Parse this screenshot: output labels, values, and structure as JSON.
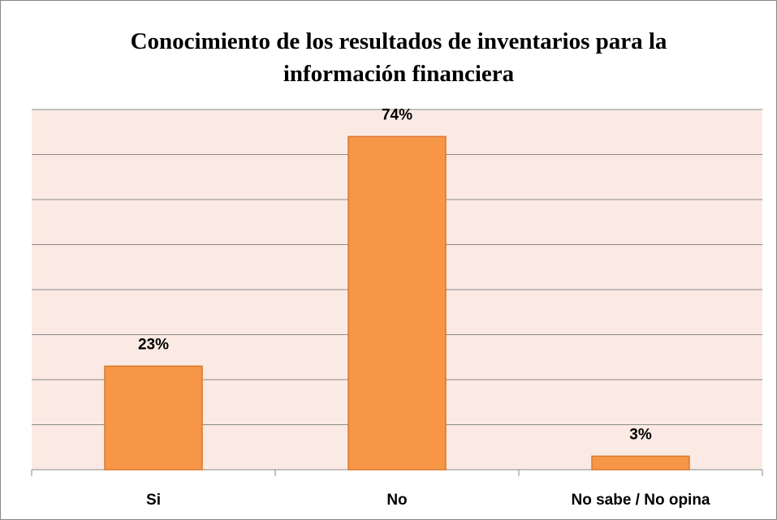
{
  "chart_data": {
    "type": "bar",
    "title": "Conocimiento de los resultados de inventarios para la información financiera",
    "categories": [
      "Si",
      "No",
      "No sabe / No opina"
    ],
    "values": [
      23,
      74,
      3
    ],
    "value_labels": [
      "23%",
      "74%",
      "3%"
    ],
    "color": "#f79646",
    "ylim": [
      0,
      80
    ],
    "yticks": [
      0,
      10,
      20,
      30,
      40,
      50,
      60,
      70,
      80
    ],
    "grid": true
  }
}
